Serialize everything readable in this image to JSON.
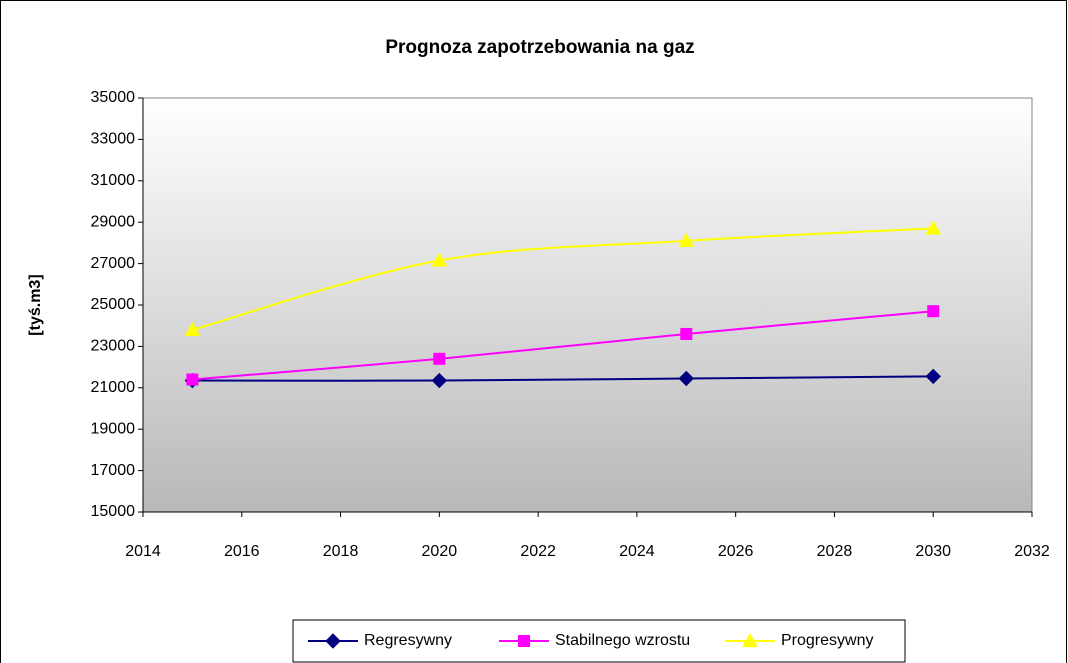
{
  "chart_data": {
    "type": "line",
    "title": "Prognoza zapotrzebowania na gaz",
    "y_label": "[tyś.m3]",
    "x": [
      2015,
      2020,
      2025,
      2030
    ],
    "series": [
      {
        "name": "Regresywny",
        "color": "#000080",
        "marker": "diamond",
        "values": [
          21350,
          21350,
          21450,
          21550
        ]
      },
      {
        "name": "Stabilnego wzrostu",
        "color": "#ff00ff",
        "marker": "square",
        "values": [
          21400,
          22400,
          23600,
          24700
        ]
      },
      {
        "name": "Progresywny",
        "color": "#ffff00",
        "marker": "triangle",
        "values": [
          23800,
          27150,
          28100,
          28700
        ]
      }
    ],
    "xlim": [
      2014,
      2032
    ],
    "xticks": [
      2014,
      2016,
      2018,
      2020,
      2022,
      2024,
      2026,
      2028,
      2030,
      2032
    ],
    "ylim": [
      15000,
      35000
    ],
    "yticks": [
      15000,
      17000,
      19000,
      21000,
      23000,
      25000,
      27000,
      29000,
      31000,
      33000,
      35000
    ],
    "smooth": true,
    "grid": false,
    "legend": "bottom"
  }
}
